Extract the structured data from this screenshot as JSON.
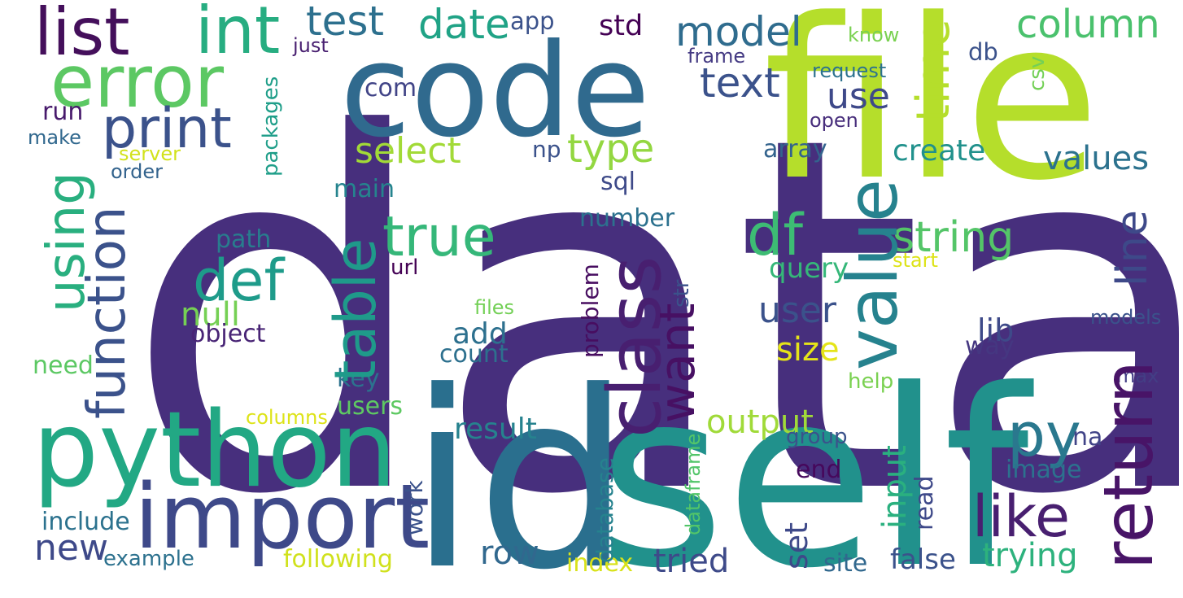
{
  "palette": {
    "background": "#ffffff",
    "colors": [
      "#472f7d",
      "#3b518b",
      "#2c718e",
      "#21908d",
      "#27ad81",
      "#5cc863",
      "#aadc32",
      "#d8e219"
    ]
  },
  "words": [
    {
      "text": "data",
      "color": "#472f7d",
      "orientation": "horizontal"
    },
    {
      "text": "code",
      "color": "#306a8e",
      "orientation": "horizontal"
    },
    {
      "text": "file",
      "color": "#b5de2b",
      "orientation": "horizontal"
    },
    {
      "text": "self",
      "color": "#21918c",
      "orientation": "horizontal"
    },
    {
      "text": "id",
      "color": "#2a6f8e",
      "orientation": "horizontal"
    },
    {
      "text": "python",
      "color": "#22a884",
      "orientation": "horizontal"
    },
    {
      "text": "import",
      "color": "#3e4989",
      "orientation": "horizontal"
    },
    {
      "text": "error",
      "color": "#5cc863",
      "orientation": "horizontal"
    },
    {
      "text": "list",
      "color": "#440f5b",
      "orientation": "horizontal"
    },
    {
      "text": "int",
      "color": "#27ad81",
      "orientation": "horizontal"
    },
    {
      "text": "test",
      "color": "#2d708e",
      "orientation": "horizontal"
    },
    {
      "text": "date",
      "color": "#20a386",
      "orientation": "horizontal"
    },
    {
      "text": "app",
      "color": "#3b528b",
      "orientation": "horizontal"
    },
    {
      "text": "std",
      "color": "#440154",
      "orientation": "horizontal"
    },
    {
      "text": "model",
      "color": "#2f6c8e",
      "orientation": "horizontal"
    },
    {
      "text": "column",
      "color": "#4ac16d",
      "orientation": "horizontal"
    },
    {
      "text": "know",
      "color": "#7ad151",
      "orientation": "horizontal"
    },
    {
      "text": "just",
      "color": "#481f70",
      "orientation": "horizontal"
    },
    {
      "text": "frame",
      "color": "#443a83",
      "orientation": "horizontal"
    },
    {
      "text": "db",
      "color": "#3b528b",
      "orientation": "horizontal"
    },
    {
      "text": "request",
      "color": "#2c728e",
      "orientation": "horizontal"
    },
    {
      "text": "print",
      "color": "#3b528b",
      "orientation": "horizontal"
    },
    {
      "text": "text",
      "color": "#3b528b",
      "orientation": "horizontal"
    },
    {
      "text": "com",
      "color": "#414487",
      "orientation": "horizontal"
    },
    {
      "text": "use",
      "color": "#3e4989",
      "orientation": "horizontal"
    },
    {
      "text": "open",
      "color": "#472d7b",
      "orientation": "horizontal"
    },
    {
      "text": "run",
      "color": "#481a6c",
      "orientation": "horizontal"
    },
    {
      "text": "make",
      "color": "#31688e",
      "orientation": "horizontal"
    },
    {
      "text": "server",
      "color": "#d2e21b",
      "orientation": "horizontal"
    },
    {
      "text": "order",
      "color": "#33638d",
      "orientation": "horizontal"
    },
    {
      "text": "select",
      "color": "#a2da37",
      "orientation": "horizontal"
    },
    {
      "text": "np",
      "color": "#3b528b",
      "orientation": "horizontal"
    },
    {
      "text": "type",
      "color": "#93d741",
      "orientation": "horizontal"
    },
    {
      "text": "create",
      "color": "#21918c",
      "orientation": "horizontal"
    },
    {
      "text": "array",
      "color": "#33638d",
      "orientation": "horizontal"
    },
    {
      "text": "values",
      "color": "#2c728e",
      "orientation": "horizontal"
    },
    {
      "text": "sql",
      "color": "#3e4a89",
      "orientation": "horizontal"
    },
    {
      "text": "main",
      "color": "#25848e",
      "orientation": "horizontal"
    },
    {
      "text": "true",
      "color": "#35b779",
      "orientation": "horizontal"
    },
    {
      "text": "df",
      "color": "#3dbc74",
      "orientation": "horizontal"
    },
    {
      "text": "string",
      "color": "#54c568",
      "orientation": "horizontal"
    },
    {
      "text": "number",
      "color": "#2c718e",
      "orientation": "horizontal"
    },
    {
      "text": "path",
      "color": "#287d8e",
      "orientation": "horizontal"
    },
    {
      "text": "def",
      "color": "#1e9b8a",
      "orientation": "horizontal"
    },
    {
      "text": "url",
      "color": "#440154",
      "orientation": "horizontal"
    },
    {
      "text": "start",
      "color": "#dde318",
      "orientation": "horizontal"
    },
    {
      "text": "query",
      "color": "#35b779",
      "orientation": "horizontal"
    },
    {
      "text": "null",
      "color": "#75d054",
      "orientation": "horizontal"
    },
    {
      "text": "user",
      "color": "#3b528b",
      "orientation": "horizontal"
    },
    {
      "text": "files",
      "color": "#73d056",
      "orientation": "horizontal"
    },
    {
      "text": "models",
      "color": "#3b528b",
      "orientation": "horizontal"
    },
    {
      "text": "object",
      "color": "#482475",
      "orientation": "horizontal"
    },
    {
      "text": "add",
      "color": "#2d708e",
      "orientation": "horizontal"
    },
    {
      "text": "lib",
      "color": "#3e4a89",
      "orientation": "horizontal"
    },
    {
      "text": "count",
      "color": "#2d708e",
      "orientation": "horizontal"
    },
    {
      "text": "size",
      "color": "#e5e419",
      "orientation": "horizontal"
    },
    {
      "text": "way",
      "color": "#453781",
      "orientation": "horizontal"
    },
    {
      "text": "need",
      "color": "#5cc863",
      "orientation": "horizontal"
    },
    {
      "text": "key",
      "color": "#2c728e",
      "orientation": "horizontal"
    },
    {
      "text": "help",
      "color": "#7ad151",
      "orientation": "horizontal"
    },
    {
      "text": "max",
      "color": "#433e85",
      "orientation": "horizontal"
    },
    {
      "text": "users",
      "color": "#5ec962",
      "orientation": "horizontal"
    },
    {
      "text": "columns",
      "color": "#dde318",
      "orientation": "horizontal"
    },
    {
      "text": "output",
      "color": "#a0da39",
      "orientation": "horizontal"
    },
    {
      "text": "result",
      "color": "#26828e",
      "orientation": "horizontal"
    },
    {
      "text": "py",
      "color": "#2a788e",
      "orientation": "horizontal"
    },
    {
      "text": "na",
      "color": "#414487",
      "orientation": "horizontal"
    },
    {
      "text": "group",
      "color": "#3b528b",
      "orientation": "horizontal"
    },
    {
      "text": "end",
      "color": "#46085c",
      "orientation": "horizontal"
    },
    {
      "text": "image",
      "color": "#2c728e",
      "orientation": "horizontal"
    },
    {
      "text": "like",
      "color": "#481f70",
      "orientation": "horizontal"
    },
    {
      "text": "include",
      "color": "#2c728e",
      "orientation": "horizontal"
    },
    {
      "text": "new",
      "color": "#3e4989",
      "orientation": "horizontal"
    },
    {
      "text": "example",
      "color": "#2c718e",
      "orientation": "horizontal"
    },
    {
      "text": "following",
      "color": "#d0e11c",
      "orientation": "horizontal"
    },
    {
      "text": "row",
      "color": "#31688e",
      "orientation": "horizontal"
    },
    {
      "text": "index",
      "color": "#d8e219",
      "orientation": "horizontal"
    },
    {
      "text": "tried",
      "color": "#3e4a89",
      "orientation": "horizontal"
    },
    {
      "text": "site",
      "color": "#31688e",
      "orientation": "horizontal"
    },
    {
      "text": "false",
      "color": "#3b528b",
      "orientation": "horizontal"
    },
    {
      "text": "trying",
      "color": "#2db27d",
      "orientation": "horizontal"
    },
    {
      "text": "using",
      "color": "#29af7f",
      "orientation": "vertical"
    },
    {
      "text": "function",
      "color": "#3b528b",
      "orientation": "vertical"
    },
    {
      "text": "packages",
      "color": "#1f9e89",
      "orientation": "vertical"
    },
    {
      "text": "class",
      "color": "#481f70",
      "orientation": "vertical"
    },
    {
      "text": "table",
      "color": "#1f9a8a",
      "orientation": "vertical"
    },
    {
      "text": "want",
      "color": "#471063",
      "orientation": "vertical"
    },
    {
      "text": "value",
      "color": "#26828e",
      "orientation": "vertical"
    },
    {
      "text": "time",
      "color": "#b5de2b",
      "orientation": "vertical"
    },
    {
      "text": "csv",
      "color": "#73d056",
      "orientation": "vertical"
    },
    {
      "text": "return",
      "color": "#481467",
      "orientation": "vertical"
    },
    {
      "text": "line",
      "color": "#3e4989",
      "orientation": "vertical"
    },
    {
      "text": "str",
      "color": "#3b528b",
      "orientation": "vertical"
    },
    {
      "text": "problem",
      "color": "#470d60",
      "orientation": "vertical"
    },
    {
      "text": "input",
      "color": "#2ab07f",
      "orientation": "vertical"
    },
    {
      "text": "database",
      "color": "#26828e",
      "orientation": "vertical"
    },
    {
      "text": "dataframe",
      "color": "#52c569",
      "orientation": "vertical"
    },
    {
      "text": "work",
      "color": "#3b528b",
      "orientation": "vertical"
    },
    {
      "text": "set",
      "color": "#3e4989",
      "orientation": "vertical"
    },
    {
      "text": "read",
      "color": "#3e4989",
      "orientation": "vertical"
    }
  ]
}
